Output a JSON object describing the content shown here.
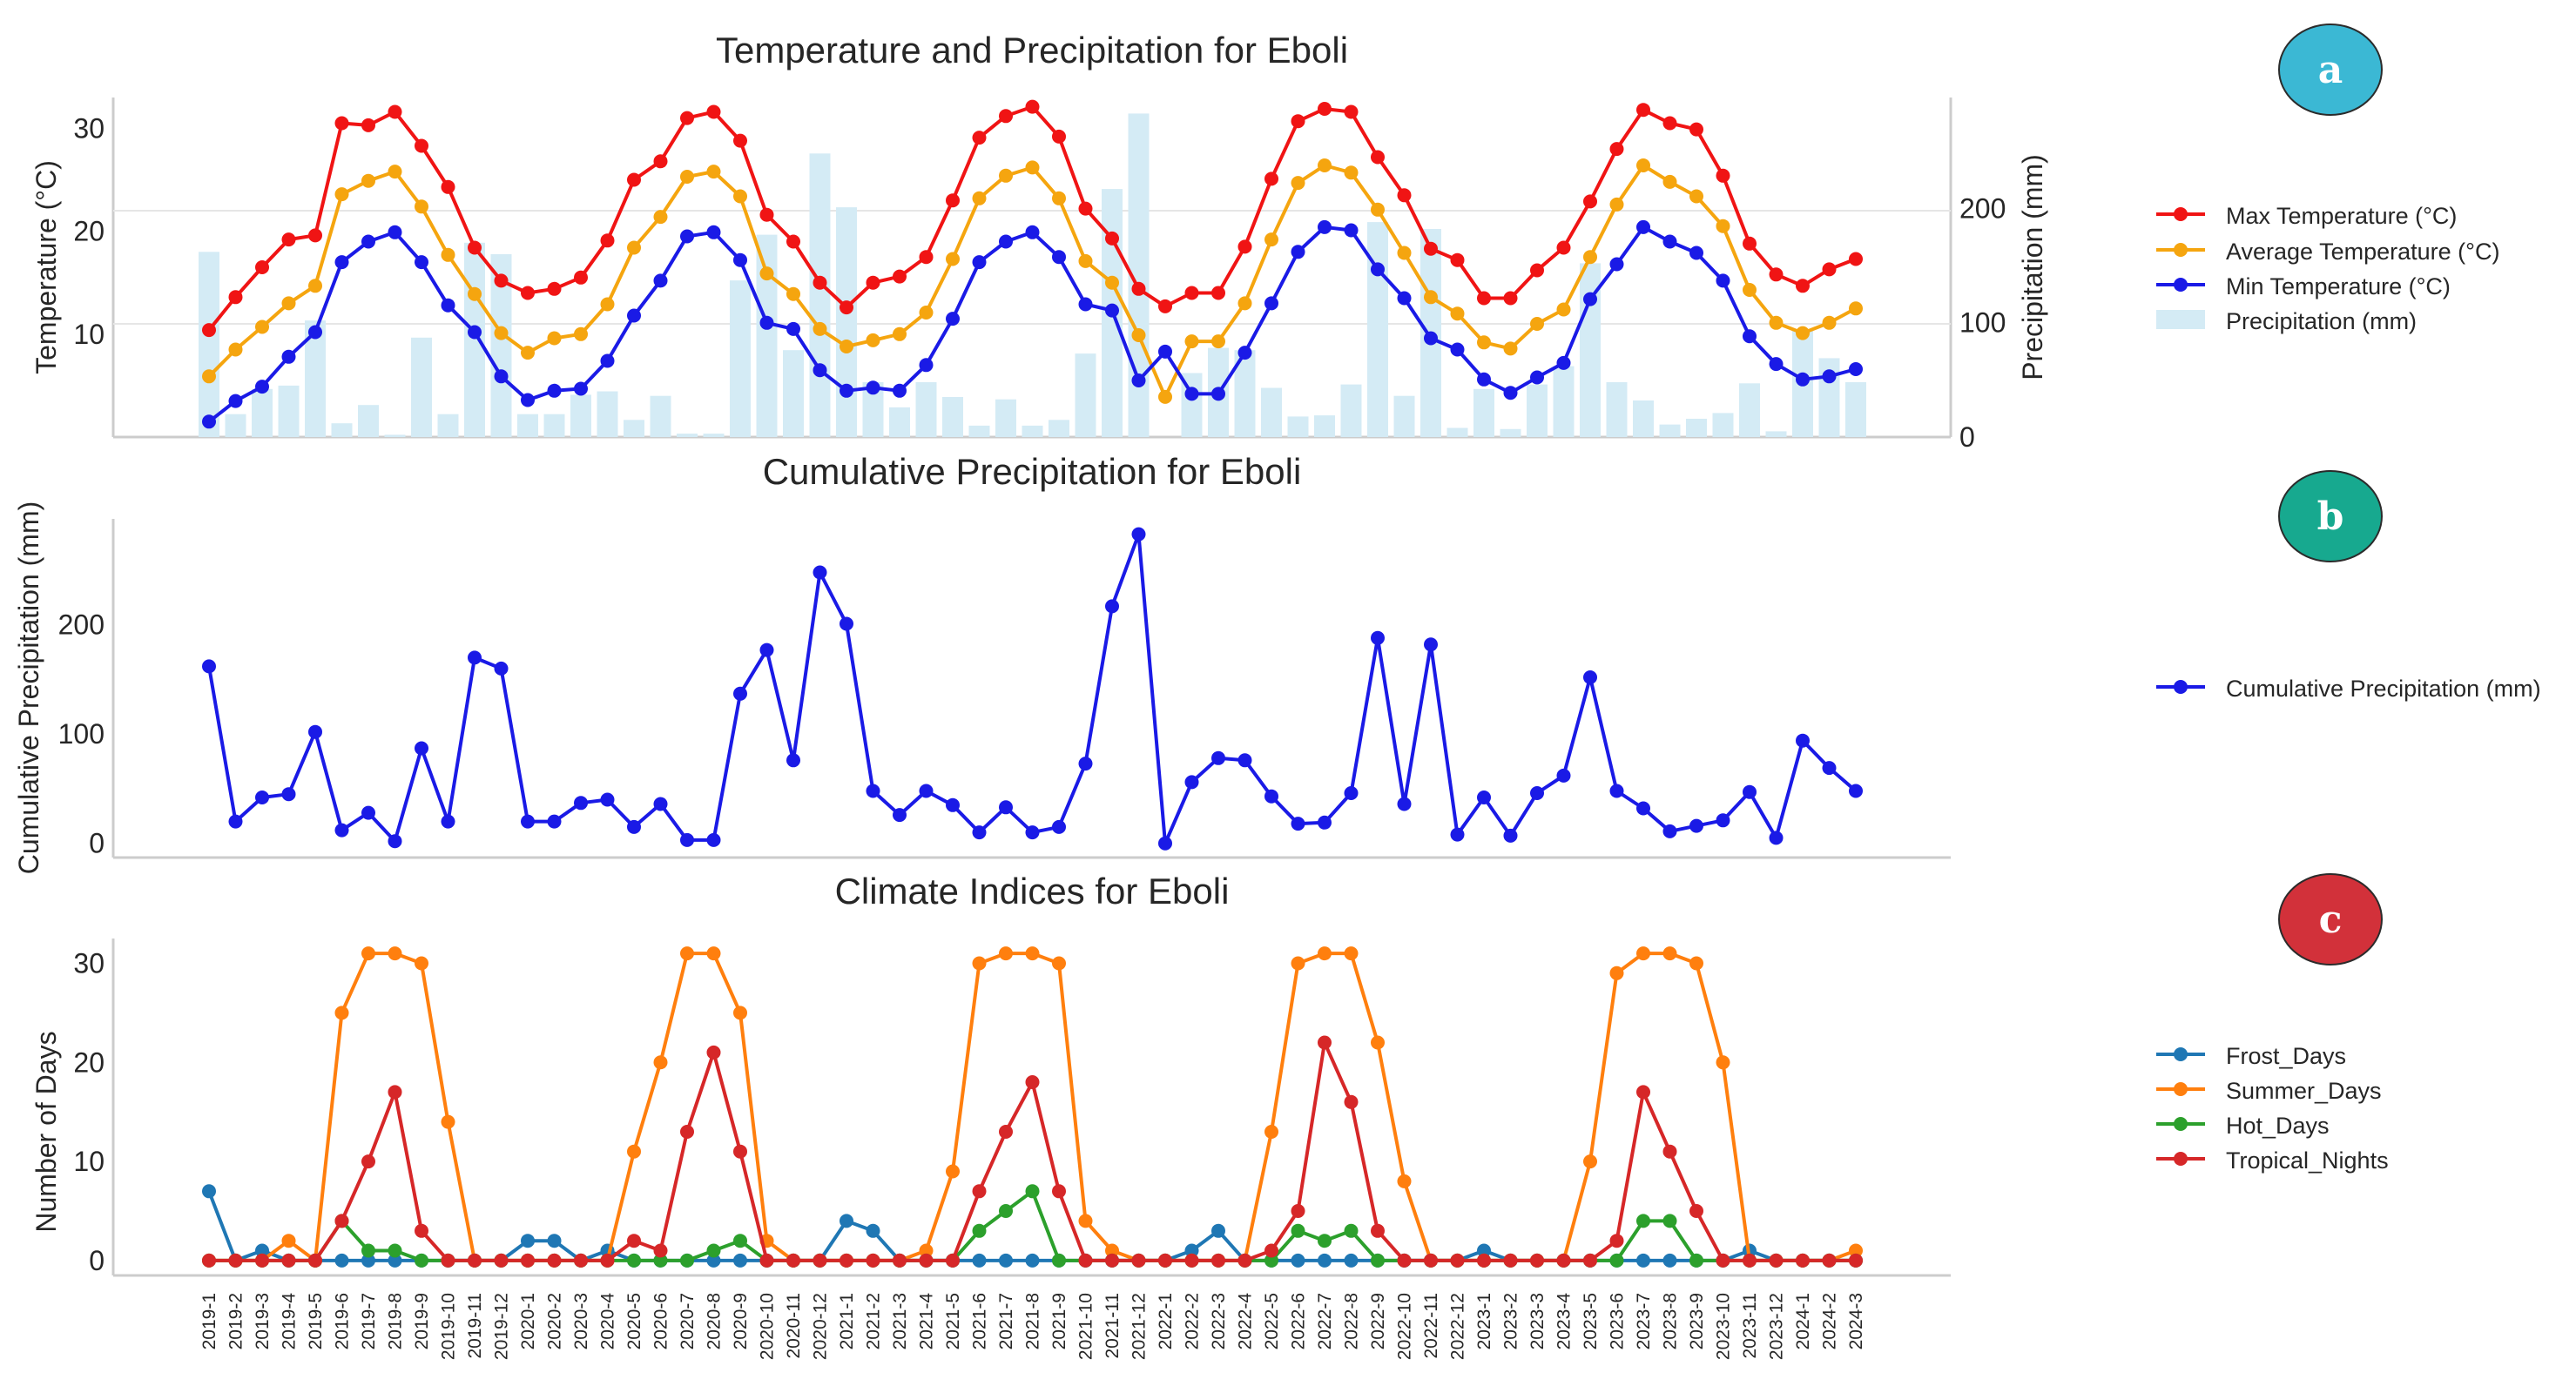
{
  "colors": {
    "max": "#f01414",
    "avg": "#f5a50f",
    "min": "#1a1ae6",
    "precip": "#d4ebf5",
    "cum": "#1a1ae6",
    "frost": "#1f77b4",
    "summer": "#ff7f0e",
    "hot": "#2ca02c",
    "tropical": "#d62728",
    "badge_a": "#3bb8d4",
    "badge_b": "#17a98f",
    "badge_c": "#d2313a",
    "axis": "#cccccc",
    "grid": "#e6e6e6",
    "text": "#262626"
  },
  "months": [
    "2019-1",
    "2019-2",
    "2019-3",
    "2019-4",
    "2019-5",
    "2019-6",
    "2019-7",
    "2019-8",
    "2019-9",
    "2019-10",
    "2019-11",
    "2019-12",
    "2020-1",
    "2020-2",
    "2020-3",
    "2020-4",
    "2020-5",
    "2020-6",
    "2020-7",
    "2020-8",
    "2020-9",
    "2020-10",
    "2020-11",
    "2020-12",
    "2021-1",
    "2021-2",
    "2021-3",
    "2021-4",
    "2021-5",
    "2021-6",
    "2021-7",
    "2021-8",
    "2021-9",
    "2021-10",
    "2021-11",
    "2021-12",
    "2022-1",
    "2022-2",
    "2022-3",
    "2022-4",
    "2022-5",
    "2022-6",
    "2022-7",
    "2022-8",
    "2022-9",
    "2022-10",
    "2022-11",
    "2022-12",
    "2023-1",
    "2023-2",
    "2023-3",
    "2023-4",
    "2023-5",
    "2023-6",
    "2023-7",
    "2023-8",
    "2023-9",
    "2023-10",
    "2023-11",
    "2023-12",
    "2024-1",
    "2024-2",
    "2024-3"
  ],
  "badges": {
    "a": "a",
    "b": "b",
    "c": "c"
  },
  "chart_data": [
    {
      "type": "line",
      "title": "Temperature and Precipitation for Eboli",
      "ylabel": "Temperature (°C)",
      "y2label": "Precipitation (mm)",
      "ylim": [
        0,
        33
      ],
      "yticks": [
        10,
        20,
        30
      ],
      "y2lim": [
        0,
        297
      ],
      "y2ticks": [
        0,
        100,
        200
      ],
      "series": [
        {
          "name": "Max Temperature (°C)",
          "color_key": "max",
          "values": [
            10.4,
            13.6,
            16.5,
            19.2,
            19.6,
            30.5,
            30.3,
            31.6,
            28.3,
            24.3,
            18.4,
            15.2,
            14.0,
            14.4,
            15.5,
            19.1,
            25.0,
            26.8,
            31.0,
            31.6,
            28.8,
            21.6,
            19.0,
            15.0,
            12.6,
            15.0,
            15.6,
            17.5,
            23.0,
            29.1,
            31.2,
            32.1,
            29.2,
            22.2,
            19.3,
            14.4,
            12.7,
            14.0,
            14.0,
            18.5,
            25.1,
            30.7,
            31.9,
            31.6,
            27.2,
            23.5,
            18.3,
            17.2,
            13.5,
            13.5,
            16.2,
            18.4,
            22.9,
            28.0,
            31.8,
            30.5,
            29.9,
            25.4,
            18.8,
            15.8,
            14.7,
            16.3,
            17.3
          ],
          "markers": "circle"
        },
        {
          "name": "Average Temperature (°C)",
          "color_key": "avg",
          "values": [
            5.9,
            8.5,
            10.7,
            13.0,
            14.7,
            23.6,
            24.9,
            25.8,
            22.4,
            17.7,
            13.9,
            10.1,
            8.2,
            9.6,
            10.0,
            12.9,
            18.4,
            21.4,
            25.3,
            25.8,
            23.4,
            15.9,
            13.9,
            10.5,
            8.8,
            9.4,
            10.0,
            12.1,
            17.3,
            23.2,
            25.4,
            26.2,
            23.2,
            17.1,
            15.0,
            9.9,
            3.9,
            9.3,
            9.3,
            13.0,
            19.2,
            24.7,
            26.4,
            25.7,
            22.1,
            17.9,
            13.6,
            12.0,
            9.2,
            8.6,
            11.0,
            12.4,
            17.5,
            22.6,
            26.4,
            24.8,
            23.4,
            20.5,
            14.3,
            11.1,
            10.1,
            11.1,
            12.5
          ],
          "markers": "circle"
        },
        {
          "name": "Min Temperature (°C)",
          "color_key": "min",
          "values": [
            1.5,
            3.5,
            4.9,
            7.8,
            10.2,
            17.0,
            19.0,
            19.9,
            17.0,
            12.8,
            10.2,
            5.9,
            3.6,
            4.5,
            4.7,
            7.4,
            11.8,
            15.2,
            19.5,
            19.9,
            17.2,
            11.1,
            10.5,
            6.5,
            4.5,
            4.8,
            4.5,
            7.0,
            11.5,
            17.0,
            19.0,
            19.9,
            17.5,
            12.9,
            12.3,
            5.5,
            8.3,
            4.2,
            4.2,
            8.2,
            13.0,
            18.0,
            20.4,
            20.1,
            16.3,
            13.5,
            9.6,
            8.5,
            5.6,
            4.3,
            5.8,
            7.2,
            13.4,
            16.8,
            20.4,
            19.0,
            17.9,
            15.2,
            9.8,
            7.1,
            5.6,
            5.9,
            6.6
          ],
          "markers": "circle"
        }
      ],
      "bars": {
        "name": "Precipitation (mm)",
        "color_key": "precip",
        "values": [
          162,
          20,
          42,
          45,
          102,
          12,
          28,
          2,
          87,
          20,
          170,
          160,
          20,
          20,
          37,
          40,
          15,
          36,
          3,
          3,
          137,
          177,
          76,
          248,
          201,
          48,
          26,
          48,
          35,
          10,
          33,
          10,
          15,
          73,
          217,
          283,
          0,
          56,
          78,
          76,
          43,
          18,
          19,
          46,
          188,
          36,
          182,
          8,
          42,
          7,
          46,
          62,
          152,
          48,
          32,
          11,
          16,
          21,
          47,
          5,
          94,
          69,
          48
        ]
      },
      "legend": "right"
    },
    {
      "type": "line",
      "title": "Cumulative Precipitation for Eboli",
      "ylabel": "Cumulative Precipitation (mm)",
      "ylim": [
        -13,
        297
      ],
      "yticks": [
        0,
        100,
        200
      ],
      "series": [
        {
          "name": "Cumulative Precipitation (mm)",
          "color_key": "cum",
          "values": [
            162,
            20,
            42,
            45,
            102,
            12,
            28,
            2,
            87,
            20,
            170,
            160,
            20,
            20,
            37,
            40,
            15,
            36,
            3,
            3,
            137,
            177,
            76,
            248,
            201,
            48,
            26,
            48,
            35,
            10,
            33,
            10,
            15,
            73,
            217,
            283,
            0,
            56,
            78,
            76,
            43,
            18,
            19,
            46,
            188,
            36,
            182,
            8,
            42,
            7,
            46,
            62,
            152,
            48,
            32,
            11,
            16,
            21,
            47,
            5,
            94,
            69,
            48
          ],
          "markers": "circle"
        }
      ],
      "legend": "right"
    },
    {
      "type": "line",
      "title": "Climate Indices for Eboli",
      "ylabel": "Number of Days",
      "ylim": [
        -1.5,
        32.5
      ],
      "yticks": [
        0,
        10,
        20,
        30
      ],
      "series": [
        {
          "name": "Frost_Days",
          "color_key": "frost",
          "values": [
            7,
            0,
            1,
            0,
            0,
            0,
            0,
            0,
            0,
            0,
            0,
            0,
            2,
            2,
            0,
            1,
            0,
            0,
            0,
            0,
            0,
            0,
            0,
            0,
            4,
            3,
            0,
            0,
            0,
            0,
            0,
            0,
            0,
            0,
            0,
            0,
            0,
            1,
            3,
            0,
            0,
            0,
            0,
            0,
            0,
            0,
            0,
            0,
            1,
            0,
            0,
            0,
            0,
            0,
            0,
            0,
            0,
            0,
            1,
            0,
            0,
            0,
            0
          ],
          "markers": "circle"
        },
        {
          "name": "Summer_Days",
          "color_key": "summer",
          "values": [
            0,
            0,
            0,
            2,
            0,
            25,
            31,
            31,
            30,
            14,
            0,
            0,
            0,
            0,
            0,
            0,
            11,
            20,
            31,
            31,
            25,
            2,
            0,
            0,
            0,
            0,
            0,
            1,
            9,
            30,
            31,
            31,
            30,
            4,
            1,
            0,
            0,
            0,
            0,
            0,
            13,
            30,
            31,
            31,
            22,
            8,
            0,
            0,
            0,
            0,
            0,
            0,
            10,
            29,
            31,
            31,
            30,
            20,
            0,
            0,
            0,
            0,
            1
          ],
          "markers": "circle"
        },
        {
          "name": "Hot_Days",
          "color_key": "hot",
          "values": [
            0,
            0,
            0,
            0,
            0,
            4,
            1,
            1,
            0,
            0,
            0,
            0,
            0,
            0,
            0,
            0,
            0,
            0,
            0,
            1,
            2,
            0,
            0,
            0,
            0,
            0,
            0,
            0,
            0,
            3,
            5,
            7,
            0,
            0,
            0,
            0,
            0,
            0,
            0,
            0,
            0,
            3,
            2,
            3,
            0,
            0,
            0,
            0,
            0,
            0,
            0,
            0,
            0,
            0,
            4,
            4,
            0,
            0,
            0,
            0,
            0,
            0,
            0
          ],
          "markers": "circle"
        },
        {
          "name": "Tropical_Nights",
          "color_key": "tropical",
          "values": [
            0,
            0,
            0,
            0,
            0,
            4,
            10,
            17,
            3,
            0,
            0,
            0,
            0,
            0,
            0,
            0,
            2,
            1,
            13,
            21,
            11,
            0,
            0,
            0,
            0,
            0,
            0,
            0,
            0,
            7,
            13,
            18,
            7,
            0,
            0,
            0,
            0,
            0,
            0,
            0,
            1,
            5,
            22,
            16,
            3,
            0,
            0,
            0,
            0,
            0,
            0,
            0,
            0,
            2,
            17,
            11,
            5,
            0,
            0,
            0,
            0,
            0,
            0
          ],
          "markers": "circle"
        }
      ],
      "legend": "right"
    }
  ]
}
